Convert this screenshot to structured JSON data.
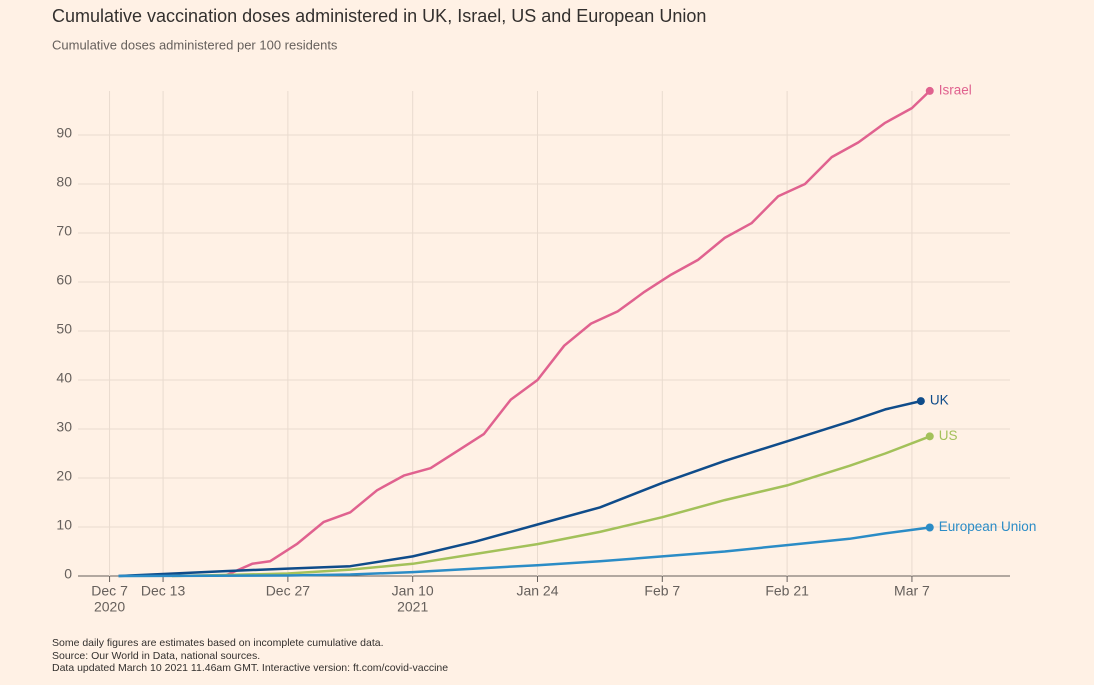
{
  "chart_data": {
    "type": "line",
    "title": "Cumulative vaccination doses administered in UK, Israel, US and European Union",
    "subtitle": "Cumulative doses administered per 100 residents",
    "notes": [
      "Some daily figures are estimates based on incomplete cumulative data.",
      "Source: Our World in Data, national sources.",
      "Data updated March 10 2021 11.46am GMT. Interactive version: ft.com/covid-vaccine"
    ],
    "xlim": [
      "2020-12-02",
      "2021-03-18"
    ],
    "ylim": [
      0,
      100
    ],
    "yticks": [
      0,
      10,
      20,
      30,
      40,
      50,
      60,
      70,
      80,
      90
    ],
    "xticks": [
      {
        "value": "2020-12-07",
        "label": [
          "Dec 7",
          "2020"
        ]
      },
      {
        "value": "2020-12-13",
        "label": [
          "Dec 13"
        ]
      },
      {
        "value": "2020-12-27",
        "label": [
          "Dec 27"
        ]
      },
      {
        "value": "2021-01-10",
        "label": [
          "Jan 10",
          "2021"
        ]
      },
      {
        "value": "2021-01-24",
        "label": [
          "Jan 24"
        ]
      },
      {
        "value": "2021-02-07",
        "label": [
          "Feb 7"
        ]
      },
      {
        "value": "2021-02-21",
        "label": [
          "Feb 21"
        ]
      },
      {
        "value": "2021-03-07",
        "label": [
          "Mar 7"
        ]
      }
    ],
    "grid": true,
    "series": [
      {
        "name": "Israel",
        "color": "#e0628f",
        "x": [
          "2020-12-20",
          "2020-12-23",
          "2020-12-25",
          "2020-12-28",
          "2020-12-31",
          "2021-01-03",
          "2021-01-06",
          "2021-01-09",
          "2021-01-12",
          "2021-01-15",
          "2021-01-18",
          "2021-01-21",
          "2021-01-24",
          "2021-01-27",
          "2021-01-30",
          "2021-02-02",
          "2021-02-05",
          "2021-02-08",
          "2021-02-11",
          "2021-02-14",
          "2021-02-17",
          "2021-02-20",
          "2021-02-23",
          "2021-02-26",
          "2021-03-01",
          "2021-03-04",
          "2021-03-07",
          "2021-03-09"
        ],
        "values": [
          0.1,
          2.5,
          3,
          6.5,
          11,
          13,
          17.5,
          20.5,
          22,
          25.5,
          29,
          36,
          40,
          47,
          51.5,
          54,
          58,
          61.5,
          64.5,
          69,
          72,
          77.5,
          80,
          85.5,
          88.5,
          92.5,
          95.5,
          99
        ]
      },
      {
        "name": "UK",
        "color": "#0f4c8a",
        "x": [
          "2020-12-08",
          "2020-12-13",
          "2020-12-20",
          "2020-12-27",
          "2021-01-03",
          "2021-01-10",
          "2021-01-17",
          "2021-01-24",
          "2021-01-31",
          "2021-02-07",
          "2021-02-14",
          "2021-02-21",
          "2021-02-28",
          "2021-03-04",
          "2021-03-08"
        ],
        "values": [
          0,
          0.4,
          1,
          1.5,
          2,
          4,
          7,
          10.5,
          14,
          19,
          23.5,
          27.5,
          31.5,
          34,
          35.7
        ]
      },
      {
        "name": "US",
        "color": "#a3c15a",
        "x": [
          "2020-12-14",
          "2020-12-20",
          "2020-12-27",
          "2021-01-03",
          "2021-01-10",
          "2021-01-17",
          "2021-01-24",
          "2021-01-31",
          "2021-02-07",
          "2021-02-14",
          "2021-02-21",
          "2021-02-28",
          "2021-03-04",
          "2021-03-09"
        ],
        "values": [
          0,
          0.2,
          0.5,
          1.3,
          2.5,
          4.5,
          6.5,
          9,
          12,
          15.5,
          18.5,
          22.5,
          25,
          28.5
        ]
      },
      {
        "name": "European Union",
        "color": "#2b8cc6",
        "x": [
          "2020-12-08",
          "2020-12-27",
          "2021-01-03",
          "2021-01-10",
          "2021-01-17",
          "2021-01-24",
          "2021-01-31",
          "2021-02-07",
          "2021-02-14",
          "2021-02-21",
          "2021-02-28",
          "2021-03-04",
          "2021-03-09"
        ],
        "values": [
          0,
          0.1,
          0.3,
          0.8,
          1.5,
          2.2,
          3,
          4,
          5,
          6.3,
          7.6,
          8.7,
          9.9
        ]
      }
    ]
  }
}
